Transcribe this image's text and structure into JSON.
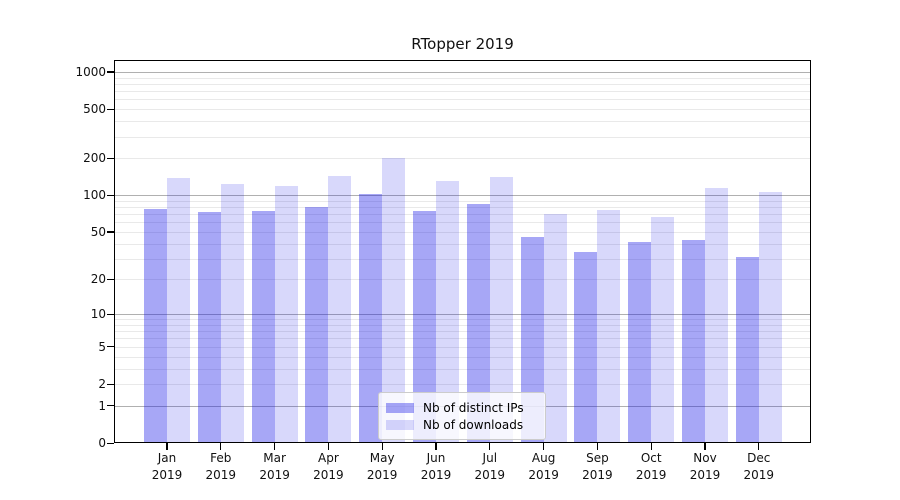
{
  "title": "RTopper 2019",
  "colors": {
    "bar_distinct_ips_hex": "#a6a6f6",
    "bar_downloads_hex": "#d9d9fb",
    "bar_distinct_ips_fill": "rgba(15,15,230,0.37)",
    "bar_downloads_fill": "rgba(15,15,230,0.16)",
    "grid_major": "#b0b0b0",
    "grid_minor": "#e9e9e9",
    "spine": "#000000"
  },
  "chart_data": {
    "type": "bar",
    "title": "RTopper 2019",
    "categories": [
      "Jan 2019",
      "Feb 2019",
      "Mar 2019",
      "Apr 2019",
      "May 2019",
      "Jun 2019",
      "Jul 2019",
      "Aug 2019",
      "Sep 2019",
      "Oct 2019",
      "Nov 2019",
      "Dec 2019"
    ],
    "x_tick_months": [
      "Jan",
      "Feb",
      "Mar",
      "Apr",
      "May",
      "Jun",
      "Jul",
      "Aug",
      "Sep",
      "Oct",
      "Nov",
      "Dec"
    ],
    "x_tick_year": "2019",
    "series": [
      {
        "name": "Nb of distinct IPs",
        "values": [
          77,
          73,
          74,
          80,
          103,
          74,
          84,
          45,
          34,
          41,
          43,
          31
        ],
        "color_hex": "#a6a6f6",
        "css_fill": "rgba(15,15,230,0.37)"
      },
      {
        "name": "Nb of downloads",
        "values": [
          138,
          123,
          119,
          143,
          202,
          131,
          140,
          70,
          75,
          66,
          114,
          106
        ],
        "color_hex": "#d9d9fb",
        "css_fill": "rgba(15,15,230,0.16)"
      }
    ],
    "xlabel": "",
    "ylabel": "",
    "yscale": "log1p",
    "y_ticks": [
      0,
      1,
      2,
      5,
      10,
      20,
      50,
      100,
      200,
      500,
      1000
    ],
    "y_minor_gridlines": [
      2,
      3,
      4,
      5,
      6,
      7,
      8,
      9,
      20,
      30,
      40,
      50,
      60,
      70,
      80,
      90,
      200,
      300,
      400,
      500,
      600,
      700,
      800,
      900
    ],
    "y_major_gridlines": [
      1,
      10,
      100,
      1000
    ],
    "ylim": [
      0,
      1250
    ],
    "grid": true,
    "legend": {
      "position": "bottom-center",
      "entries": [
        "Nb of distinct IPs",
        "Nb of downloads"
      ]
    }
  }
}
